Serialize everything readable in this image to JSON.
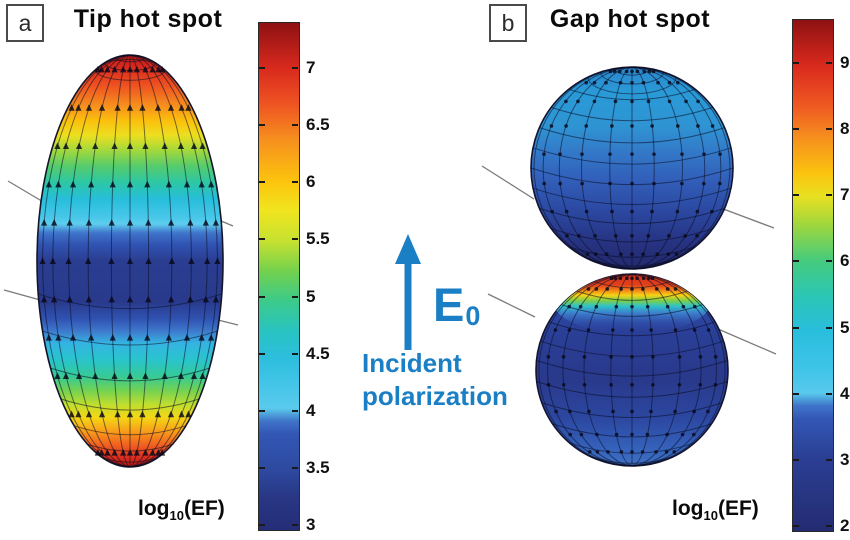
{
  "figure": {
    "background": "#ffffff",
    "accent_blue": "#1a7fc5",
    "annotation": {
      "field_symbol": "E",
      "field_symbol_sub": "0",
      "caption_line1": "Incident",
      "caption_line2": "polarization",
      "arrow_direction": "up"
    },
    "panels": [
      {
        "label": "a",
        "title": "Tip hot spot",
        "geometry": "prolate ellipsoid nanoparticle (nanorod)",
        "hot_spot_location": "tips (top and bottom poles)",
        "scale_label": {
          "base": "log",
          "sub": "10",
          "rest": "(EF)"
        },
        "colorbar": {
          "colormap": "jet",
          "min": 3,
          "max": 7.4,
          "ticks": [
            "7",
            "6.5",
            "6",
            "5.5",
            "5",
            "4.5",
            "4",
            "3.5",
            "3"
          ]
        }
      },
      {
        "label": "b",
        "title": "Gap hot spot",
        "geometry": "two nearly touching nanospheres (dimer)",
        "hot_spot_location": "gap between the spheres",
        "scale_label": {
          "base": "log",
          "sub": "10",
          "rest": "(EF)"
        },
        "colorbar": {
          "colormap": "jet",
          "min": 2,
          "max": 9.7,
          "ticks": [
            "9",
            "8",
            "7",
            "6",
            "5",
            "4",
            "3",
            "2"
          ]
        }
      }
    ]
  },
  "chart_data": [
    {
      "type": "heatmap",
      "panel": "a",
      "title": "Tip hot spot",
      "quantity": "log10(EF)",
      "geometry": "prolate ellipsoid nanoparticle with surface field-direction arrows",
      "colormap": "jet",
      "colorbar_ticks": [
        7,
        6.5,
        6,
        5.5,
        5,
        4.5,
        4,
        3.5,
        3
      ],
      "value_range": [
        3,
        7.4
      ],
      "max_enhancement_location": "particle tips (poles), log10(EF) ~ 7.4",
      "min_enhancement_location": "equatorial waist, log10(EF) ~ 3"
    },
    {
      "type": "heatmap",
      "panel": "b",
      "title": "Gap hot spot",
      "quantity": "log10(EF)",
      "geometry": "two nearly touching nanospheres (dimer) with surface field-direction arrows",
      "colormap": "jet",
      "colorbar_ticks": [
        9,
        8,
        7,
        6,
        5,
        4,
        3,
        2
      ],
      "value_range": [
        2,
        9.7
      ],
      "max_enhancement_location": "gap between spheres, log10(EF) ~ 9.7",
      "min_enhancement_location": "outer sphere surfaces, log10(EF) ~ 2"
    },
    {
      "type": "annotation",
      "text": "E0 incident polarization, arrow pointing up (vertical polarization)"
    }
  ]
}
